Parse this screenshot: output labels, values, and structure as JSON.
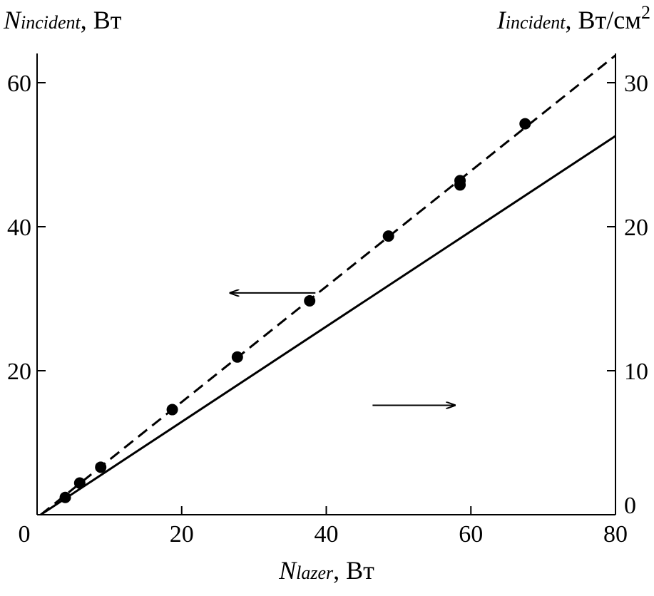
{
  "chart_data": {
    "type": "scatter",
    "title": "",
    "xlabel": {
      "main": "N",
      "sub": "lazer",
      "unit": ", Вт"
    },
    "ylabel_left": {
      "main": "N",
      "sub": "incident",
      "unit": ", Вт"
    },
    "ylabel_right": {
      "main": "I",
      "sub": "incident",
      "unit": ", Вт/см",
      "sup": "2"
    },
    "xlim": [
      0,
      80
    ],
    "ylim_left": [
      0,
      64
    ],
    "ylim_right": [
      0,
      32
    ],
    "x_ticks": [
      "0",
      "20",
      "40",
      "60",
      "80"
    ],
    "y_ticks_left": [
      "20",
      "40",
      "60"
    ],
    "y_ticks_right": [
      "0",
      "10",
      "20",
      "30"
    ],
    "grid": false,
    "series": [
      {
        "name": "measured N_incident",
        "style": "points",
        "axis": "left",
        "x": [
          3.9,
          5.9,
          8.8,
          18.7,
          27.7,
          37.7,
          48.6,
          58.5,
          58.5,
          67.5
        ],
        "y": [
          2.4,
          4.4,
          6.6,
          14.6,
          21.9,
          29.7,
          38.7,
          46.4,
          45.8,
          54.3
        ]
      },
      {
        "name": "N_incident fit",
        "style": "dashed",
        "axis": "left",
        "x": [
          0.5,
          80
        ],
        "y": [
          0,
          63.8
        ]
      },
      {
        "name": "I_incident",
        "style": "solid",
        "axis": "right",
        "x": [
          0.5,
          80
        ],
        "y": [
          0,
          26.3
        ]
      }
    ],
    "annotations": [
      {
        "type": "arrow",
        "direction": "left",
        "points_to": "left axis",
        "from": [
          38.5,
          30.8
        ],
        "to": [
          26.7,
          30.8
        ]
      },
      {
        "type": "arrow",
        "direction": "right",
        "points_to": "right axis",
        "from": [
          46.4,
          15.2
        ],
        "to": [
          57.8,
          15.2
        ]
      }
    ]
  }
}
